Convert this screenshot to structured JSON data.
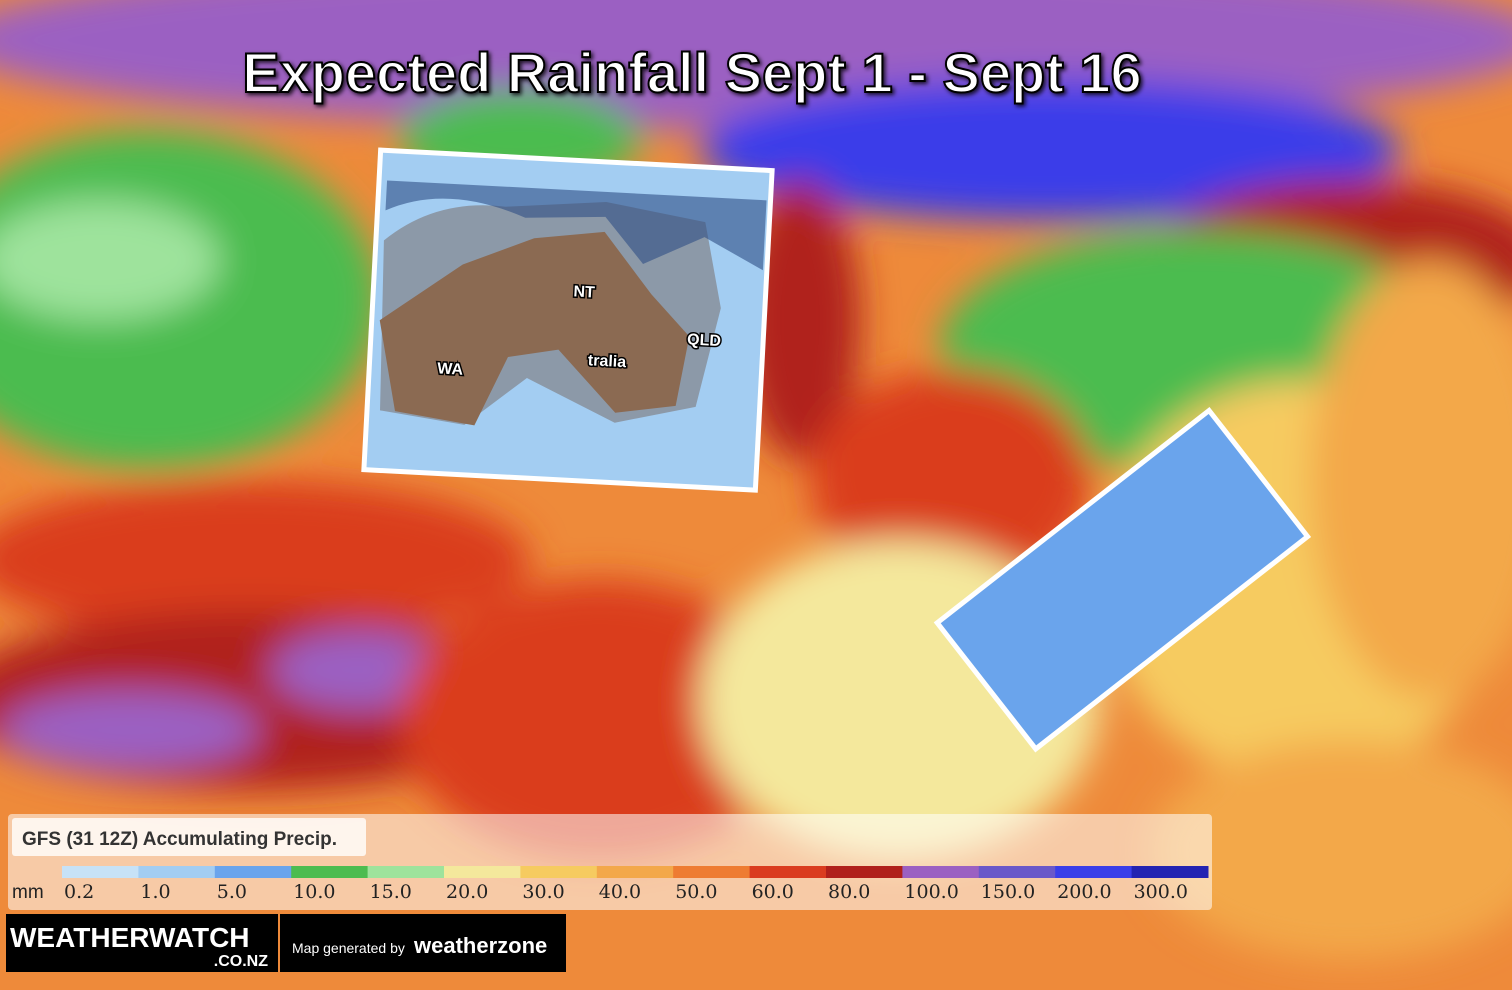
{
  "title": "Expected Rainfall Sept 1 - Sept 16",
  "map_labels": {
    "nt": "NT",
    "qld": "QLD",
    "wa": "WA",
    "australia": "tralia"
  },
  "legend": {
    "title": "GFS (31 12Z) Accumulating Precip.",
    "unit": "mm",
    "items": [
      {
        "label": "0.2",
        "color": "#c7e2f7"
      },
      {
        "label": "1.0",
        "color": "#a3cdf2"
      },
      {
        "label": "5.0",
        "color": "#6aa4ec"
      },
      {
        "label": "10.0",
        "color": "#4cbc50"
      },
      {
        "label": "15.0",
        "color": "#9ee39c"
      },
      {
        "label": "20.0",
        "color": "#f4e89c"
      },
      {
        "label": "30.0",
        "color": "#f6cb60"
      },
      {
        "label": "40.0",
        "color": "#f3a84a"
      },
      {
        "label": "50.0",
        "color": "#ee7c32"
      },
      {
        "label": "60.0",
        "color": "#da3c1f"
      },
      {
        "label": "80.0",
        "color": "#b0201b"
      },
      {
        "label": "100.0",
        "color": "#9b60c2"
      },
      {
        "label": "150.0",
        "color": "#6a58c9"
      },
      {
        "label": "200.0",
        "color": "#3a3ee9"
      },
      {
        "label": "300.0",
        "color": "#2323b2"
      }
    ]
  },
  "branding": {
    "weatherwatch": "WEATHERWATCH",
    "domain": ".CO.NZ",
    "generated": "Map generated by",
    "weatherzone": "weatherzone"
  }
}
